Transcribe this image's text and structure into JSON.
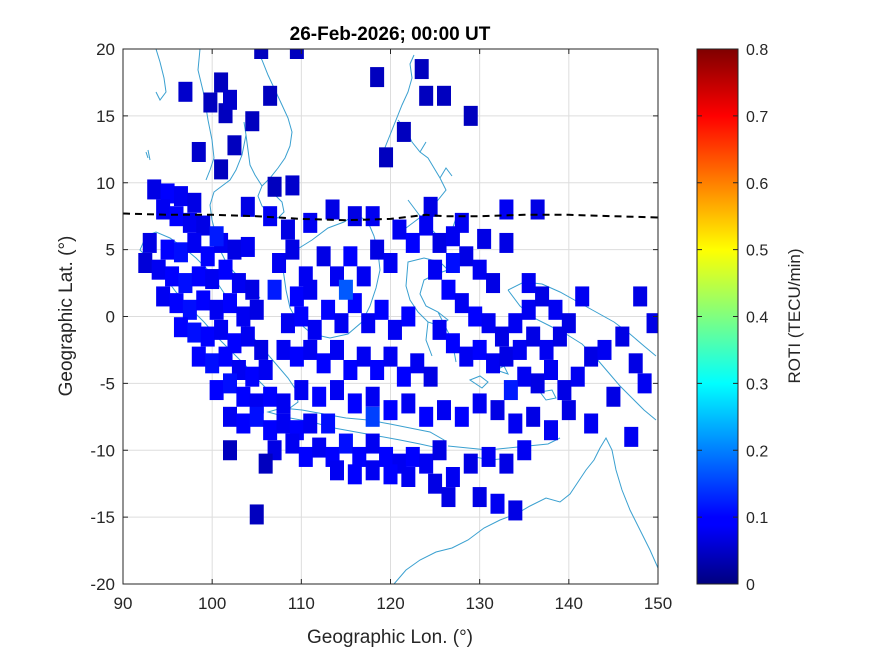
{
  "figure": {
    "title": "26-Feb-2026; 00:00 UT",
    "xlabel": "Geographic Lon. (°)",
    "ylabel": "Geographic Lat. (°)",
    "colorbar_label": "ROTI (TECU/min)"
  },
  "colors": {
    "coastline": "#3aa0d0",
    "grid": "#dddddd",
    "equator_line": "#000000"
  },
  "chart_data": {
    "type": "heatmap",
    "title": "26-Feb-2026; 00:00 UT",
    "xlabel": "Geographic Lon. (°)",
    "ylabel": "Geographic Lat. (°)",
    "xlim": [
      90,
      150
    ],
    "ylim": [
      -20,
      20
    ],
    "x_ticks": [
      90,
      100,
      110,
      120,
      130,
      140,
      150
    ],
    "y_ticks": [
      -20,
      -15,
      -10,
      -5,
      0,
      5,
      10,
      15,
      20
    ],
    "x_tick_labels": [
      "90",
      "100",
      "110",
      "120",
      "130",
      "140",
      "150"
    ],
    "y_tick_labels": [
      "-20",
      "-15",
      "-10",
      "-5",
      "0",
      "5",
      "10",
      "15",
      "20"
    ],
    "grid": true,
    "colorbar": {
      "label": "ROTI (TECU/min)",
      "range": [
        0,
        0.8
      ],
      "ticks": [
        0,
        0.1,
        0.2,
        0.3,
        0.4,
        0.5,
        0.6,
        0.7,
        0.8
      ],
      "tick_labels": [
        "0",
        "0.1",
        "0.2",
        "0.3",
        "0.4",
        "0.5",
        "0.6",
        "0.7",
        "0.8"
      ],
      "colormap": "jet"
    },
    "magnetic_equator": [
      [
        90,
        7.7
      ],
      [
        95,
        7.6
      ],
      [
        100,
        7.6
      ],
      [
        105,
        7.5
      ],
      [
        110,
        7.3
      ],
      [
        115,
        7.2
      ],
      [
        120,
        7.3
      ],
      [
        124,
        7.6
      ],
      [
        126,
        7.5
      ],
      [
        130,
        7.5
      ],
      [
        135,
        7.6
      ],
      [
        140,
        7.6
      ],
      [
        145,
        7.5
      ],
      [
        150,
        7.4
      ]
    ],
    "roti_cells": [
      [
        97.0,
        16.8,
        0.06
      ],
      [
        99.8,
        16.0,
        0.05
      ],
      [
        101.0,
        17.5,
        0.05
      ],
      [
        101.5,
        15.2,
        0.05
      ],
      [
        102.0,
        16.2,
        0.06
      ],
      [
        104.5,
        14.6,
        0.05
      ],
      [
        105.5,
        20.0,
        0.05
      ],
      [
        106.5,
        16.5,
        0.05
      ],
      [
        109.5,
        20.0,
        0.05
      ],
      [
        102.5,
        12.8,
        0.05
      ],
      [
        98.5,
        12.3,
        0.06
      ],
      [
        101.0,
        11.0,
        0.05
      ],
      [
        107.0,
        9.7,
        0.05
      ],
      [
        109.0,
        9.8,
        0.06
      ],
      [
        118.5,
        17.9,
        0.05
      ],
      [
        123.5,
        18.5,
        0.05
      ],
      [
        124.0,
        16.5,
        0.05
      ],
      [
        126.0,
        16.5,
        0.05
      ],
      [
        129.0,
        15.0,
        0.05
      ],
      [
        121.5,
        13.8,
        0.05
      ],
      [
        119.5,
        11.9,
        0.05
      ],
      [
        93.5,
        9.5,
        0.08
      ],
      [
        95.0,
        9.2,
        0.1
      ],
      [
        96.5,
        9.0,
        0.09
      ],
      [
        98.0,
        8.5,
        0.08
      ],
      [
        94.5,
        8.0,
        0.09
      ],
      [
        96.0,
        7.5,
        0.1
      ],
      [
        97.5,
        7.0,
        0.09
      ],
      [
        99.0,
        6.8,
        0.08
      ],
      [
        93.0,
        5.5,
        0.08
      ],
      [
        95.0,
        5.0,
        0.1
      ],
      [
        96.5,
        4.8,
        0.11
      ],
      [
        98.0,
        5.5,
        0.09
      ],
      [
        99.5,
        4.5,
        0.1
      ],
      [
        101.0,
        5.5,
        0.09
      ],
      [
        102.5,
        5.0,
        0.08
      ],
      [
        104.0,
        5.2,
        0.09
      ],
      [
        92.5,
        4.0,
        0.07
      ],
      [
        94.0,
        3.5,
        0.09
      ],
      [
        95.5,
        3.0,
        0.1
      ],
      [
        97.0,
        2.5,
        0.11
      ],
      [
        98.5,
        3.0,
        0.1
      ],
      [
        100.0,
        2.8,
        0.09
      ],
      [
        101.5,
        3.5,
        0.1
      ],
      [
        103.0,
        2.5,
        0.09
      ],
      [
        104.5,
        2.0,
        0.08
      ],
      [
        94.5,
        1.5,
        0.09
      ],
      [
        96.0,
        1.0,
        0.1
      ],
      [
        97.5,
        0.5,
        0.11
      ],
      [
        99.0,
        1.2,
        0.1
      ],
      [
        100.5,
        0.5,
        0.09
      ],
      [
        102.0,
        1.0,
        0.1
      ],
      [
        103.5,
        0.0,
        0.09
      ],
      [
        105.0,
        0.5,
        0.08
      ],
      [
        96.5,
        -0.8,
        0.1
      ],
      [
        98.0,
        -1.2,
        0.11
      ],
      [
        99.5,
        -1.5,
        0.1
      ],
      [
        101.0,
        -1.0,
        0.09
      ],
      [
        102.5,
        -2.0,
        0.1
      ],
      [
        104.0,
        -1.5,
        0.09
      ],
      [
        105.5,
        -2.5,
        0.08
      ],
      [
        98.5,
        -3.0,
        0.1
      ],
      [
        100.0,
        -3.5,
        0.11
      ],
      [
        101.5,
        -3.0,
        0.1
      ],
      [
        103.0,
        -4.0,
        0.09
      ],
      [
        104.5,
        -4.5,
        0.1
      ],
      [
        106.0,
        -4.0,
        0.09
      ],
      [
        100.5,
        -5.5,
        0.1
      ],
      [
        102.0,
        -5.0,
        0.11
      ],
      [
        103.5,
        -6.0,
        0.1
      ],
      [
        105.0,
        -6.5,
        0.09
      ],
      [
        106.5,
        -6.0,
        0.1
      ],
      [
        108.0,
        -6.5,
        0.09
      ],
      [
        102.0,
        -7.5,
        0.09
      ],
      [
        103.5,
        -8.0,
        0.1
      ],
      [
        105.0,
        -7.5,
        0.11
      ],
      [
        106.5,
        -8.5,
        0.1
      ],
      [
        108.0,
        -8.0,
        0.09
      ],
      [
        109.5,
        -8.5,
        0.1
      ],
      [
        111.0,
        -8.0,
        0.09
      ],
      [
        107.0,
        -10.0,
        0.08
      ],
      [
        109.0,
        -9.5,
        0.09
      ],
      [
        110.5,
        -10.5,
        0.1
      ],
      [
        112.0,
        -9.8,
        0.09
      ],
      [
        113.5,
        -10.5,
        0.1
      ],
      [
        115.0,
        -9.5,
        0.11
      ],
      [
        116.5,
        -10.5,
        0.1
      ],
      [
        118.0,
        -9.5,
        0.09
      ],
      [
        119.5,
        -10.5,
        0.1
      ],
      [
        121.0,
        -11.0,
        0.09
      ],
      [
        122.5,
        -10.5,
        0.1
      ],
      [
        124.0,
        -11.0,
        0.09
      ],
      [
        125.5,
        -10.0,
        0.08
      ],
      [
        114.0,
        -11.5,
        0.09
      ],
      [
        116.0,
        -11.8,
        0.1
      ],
      [
        118.0,
        -11.5,
        0.09
      ],
      [
        120.0,
        -11.8,
        0.1
      ],
      [
        122.0,
        -12.0,
        0.09
      ],
      [
        125.0,
        -12.5,
        0.08
      ],
      [
        127.0,
        -12.0,
        0.09
      ],
      [
        129.0,
        -11.0,
        0.08
      ],
      [
        131.0,
        -10.5,
        0.09
      ],
      [
        133.0,
        -11.0,
        0.08
      ],
      [
        135.0,
        -10.0,
        0.09
      ],
      [
        130.0,
        -13.5,
        0.08
      ],
      [
        132.0,
        -14.0,
        0.09
      ],
      [
        134.0,
        -14.5,
        0.08
      ],
      [
        126.5,
        -13.5,
        0.08
      ],
      [
        107.5,
        4.0,
        0.09
      ],
      [
        109.0,
        5.0,
        0.08
      ],
      [
        110.5,
        3.0,
        0.09
      ],
      [
        109.5,
        1.5,
        0.1
      ],
      [
        111.0,
        2.0,
        0.09
      ],
      [
        112.5,
        4.5,
        0.08
      ],
      [
        114.0,
        3.0,
        0.09
      ],
      [
        115.5,
        4.5,
        0.1
      ],
      [
        117.0,
        3.0,
        0.09
      ],
      [
        118.5,
        5.0,
        0.08
      ],
      [
        120.0,
        4.0,
        0.09
      ],
      [
        108.5,
        -0.5,
        0.09
      ],
      [
        110.0,
        0.0,
        0.1
      ],
      [
        111.5,
        -1.0,
        0.09
      ],
      [
        113.0,
        0.5,
        0.1
      ],
      [
        114.5,
        -0.5,
        0.09
      ],
      [
        116.0,
        1.0,
        0.1
      ],
      [
        117.5,
        -0.5,
        0.09
      ],
      [
        119.0,
        0.5,
        0.1
      ],
      [
        120.5,
        -1.0,
        0.09
      ],
      [
        122.0,
        0.0,
        0.1
      ],
      [
        108.0,
        -2.5,
        0.09
      ],
      [
        109.5,
        -3.0,
        0.1
      ],
      [
        111.0,
        -2.5,
        0.09
      ],
      [
        112.5,
        -3.5,
        0.1
      ],
      [
        114.0,
        -2.5,
        0.09
      ],
      [
        115.5,
        -4.0,
        0.1
      ],
      [
        117.0,
        -3.0,
        0.09
      ],
      [
        118.5,
        -4.0,
        0.1
      ],
      [
        120.0,
        -3.0,
        0.09
      ],
      [
        121.5,
        -4.5,
        0.1
      ],
      [
        123.0,
        -3.5,
        0.09
      ],
      [
        124.5,
        -4.5,
        0.08
      ],
      [
        110.0,
        -5.5,
        0.09
      ],
      [
        112.0,
        -6.0,
        0.1
      ],
      [
        114.0,
        -5.5,
        0.09
      ],
      [
        116.0,
        -6.5,
        0.1
      ],
      [
        118.0,
        -6.0,
        0.09
      ],
      [
        120.0,
        -7.0,
        0.1
      ],
      [
        122.0,
        -6.5,
        0.09
      ],
      [
        124.0,
        -7.5,
        0.1
      ],
      [
        126.0,
        -7.0,
        0.09
      ],
      [
        128.0,
        -7.5,
        0.1
      ],
      [
        130.0,
        -6.5,
        0.09
      ],
      [
        115.0,
        2.0,
        0.17
      ],
      [
        107.0,
        2.0,
        0.12
      ],
      [
        118.0,
        -7.5,
        0.15
      ],
      [
        100.5,
        6.0,
        0.12
      ],
      [
        121.0,
        6.5,
        0.09
      ],
      [
        122.5,
        5.5,
        0.1
      ],
      [
        124.0,
        6.8,
        0.09
      ],
      [
        125.5,
        5.5,
        0.08
      ],
      [
        127.0,
        6.0,
        0.09
      ],
      [
        128.5,
        4.5,
        0.08
      ],
      [
        130.0,
        3.5,
        0.09
      ],
      [
        131.5,
        2.5,
        0.08
      ],
      [
        125.0,
        3.5,
        0.09
      ],
      [
        126.5,
        2.0,
        0.1
      ],
      [
        128.0,
        1.0,
        0.09
      ],
      [
        129.5,
        0.0,
        0.1
      ],
      [
        131.0,
        -0.5,
        0.09
      ],
      [
        132.5,
        -1.5,
        0.08
      ],
      [
        134.0,
        -0.5,
        0.09
      ],
      [
        125.5,
        -1.0,
        0.09
      ],
      [
        127.0,
        -2.0,
        0.1
      ],
      [
        128.5,
        -3.0,
        0.09
      ],
      [
        130.0,
        -2.5,
        0.1
      ],
      [
        131.5,
        -3.5,
        0.09
      ],
      [
        133.0,
        -3.0,
        0.08
      ],
      [
        134.5,
        -2.5,
        0.09
      ],
      [
        136.0,
        -1.5,
        0.08
      ],
      [
        137.5,
        -2.5,
        0.09
      ],
      [
        139.0,
        -1.5,
        0.08
      ],
      [
        135.5,
        0.5,
        0.09
      ],
      [
        137.0,
        1.5,
        0.08
      ],
      [
        138.5,
        0.5,
        0.09
      ],
      [
        140.0,
        -0.5,
        0.08
      ],
      [
        141.5,
        1.5,
        0.09
      ],
      [
        135.0,
        -4.5,
        0.09
      ],
      [
        136.5,
        -5.0,
        0.08
      ],
      [
        138.0,
        -4.0,
        0.09
      ],
      [
        139.5,
        -5.5,
        0.08
      ],
      [
        141.0,
        -4.5,
        0.09
      ],
      [
        142.5,
        -3.0,
        0.08
      ],
      [
        144.0,
        -2.5,
        0.09
      ],
      [
        146.0,
        -1.5,
        0.08
      ],
      [
        147.5,
        -3.5,
        0.08
      ],
      [
        148.5,
        -5.0,
        0.09
      ],
      [
        132.0,
        -7.0,
        0.08
      ],
      [
        134.0,
        -8.0,
        0.09
      ],
      [
        136.0,
        -7.5,
        0.08
      ],
      [
        138.0,
        -8.5,
        0.09
      ],
      [
        140.0,
        -7.0,
        0.08
      ],
      [
        142.5,
        -8.0,
        0.09
      ],
      [
        145.0,
        -6.0,
        0.08
      ],
      [
        147.0,
        -9.0,
        0.09
      ],
      [
        133.0,
        5.5,
        0.08
      ],
      [
        135.5,
        2.5,
        0.09
      ],
      [
        136.5,
        8.0,
        0.08
      ],
      [
        133.0,
        8.0,
        0.09
      ],
      [
        124.5,
        8.2,
        0.08
      ],
      [
        128.0,
        7.0,
        0.09
      ],
      [
        130.5,
        5.8,
        0.08
      ],
      [
        148.0,
        1.5,
        0.08
      ],
      [
        149.5,
        -0.5,
        0.08
      ],
      [
        105.0,
        -14.8,
        0.05
      ],
      [
        102.0,
        -10.0,
        0.05
      ],
      [
        106.0,
        -11.0,
        0.05
      ],
      [
        116.0,
        7.5,
        0.08
      ],
      [
        118.0,
        7.5,
        0.09
      ],
      [
        113.5,
        8.0,
        0.08
      ],
      [
        111.0,
        7.0,
        0.09
      ],
      [
        104.0,
        8.2,
        0.08
      ],
      [
        106.5,
        7.5,
        0.09
      ],
      [
        108.5,
        6.5,
        0.08
      ],
      [
        127.0,
        4.0,
        0.11
      ],
      [
        133.5,
        -5.5,
        0.12
      ],
      [
        113.0,
        -8.0,
        0.11
      ]
    ]
  }
}
